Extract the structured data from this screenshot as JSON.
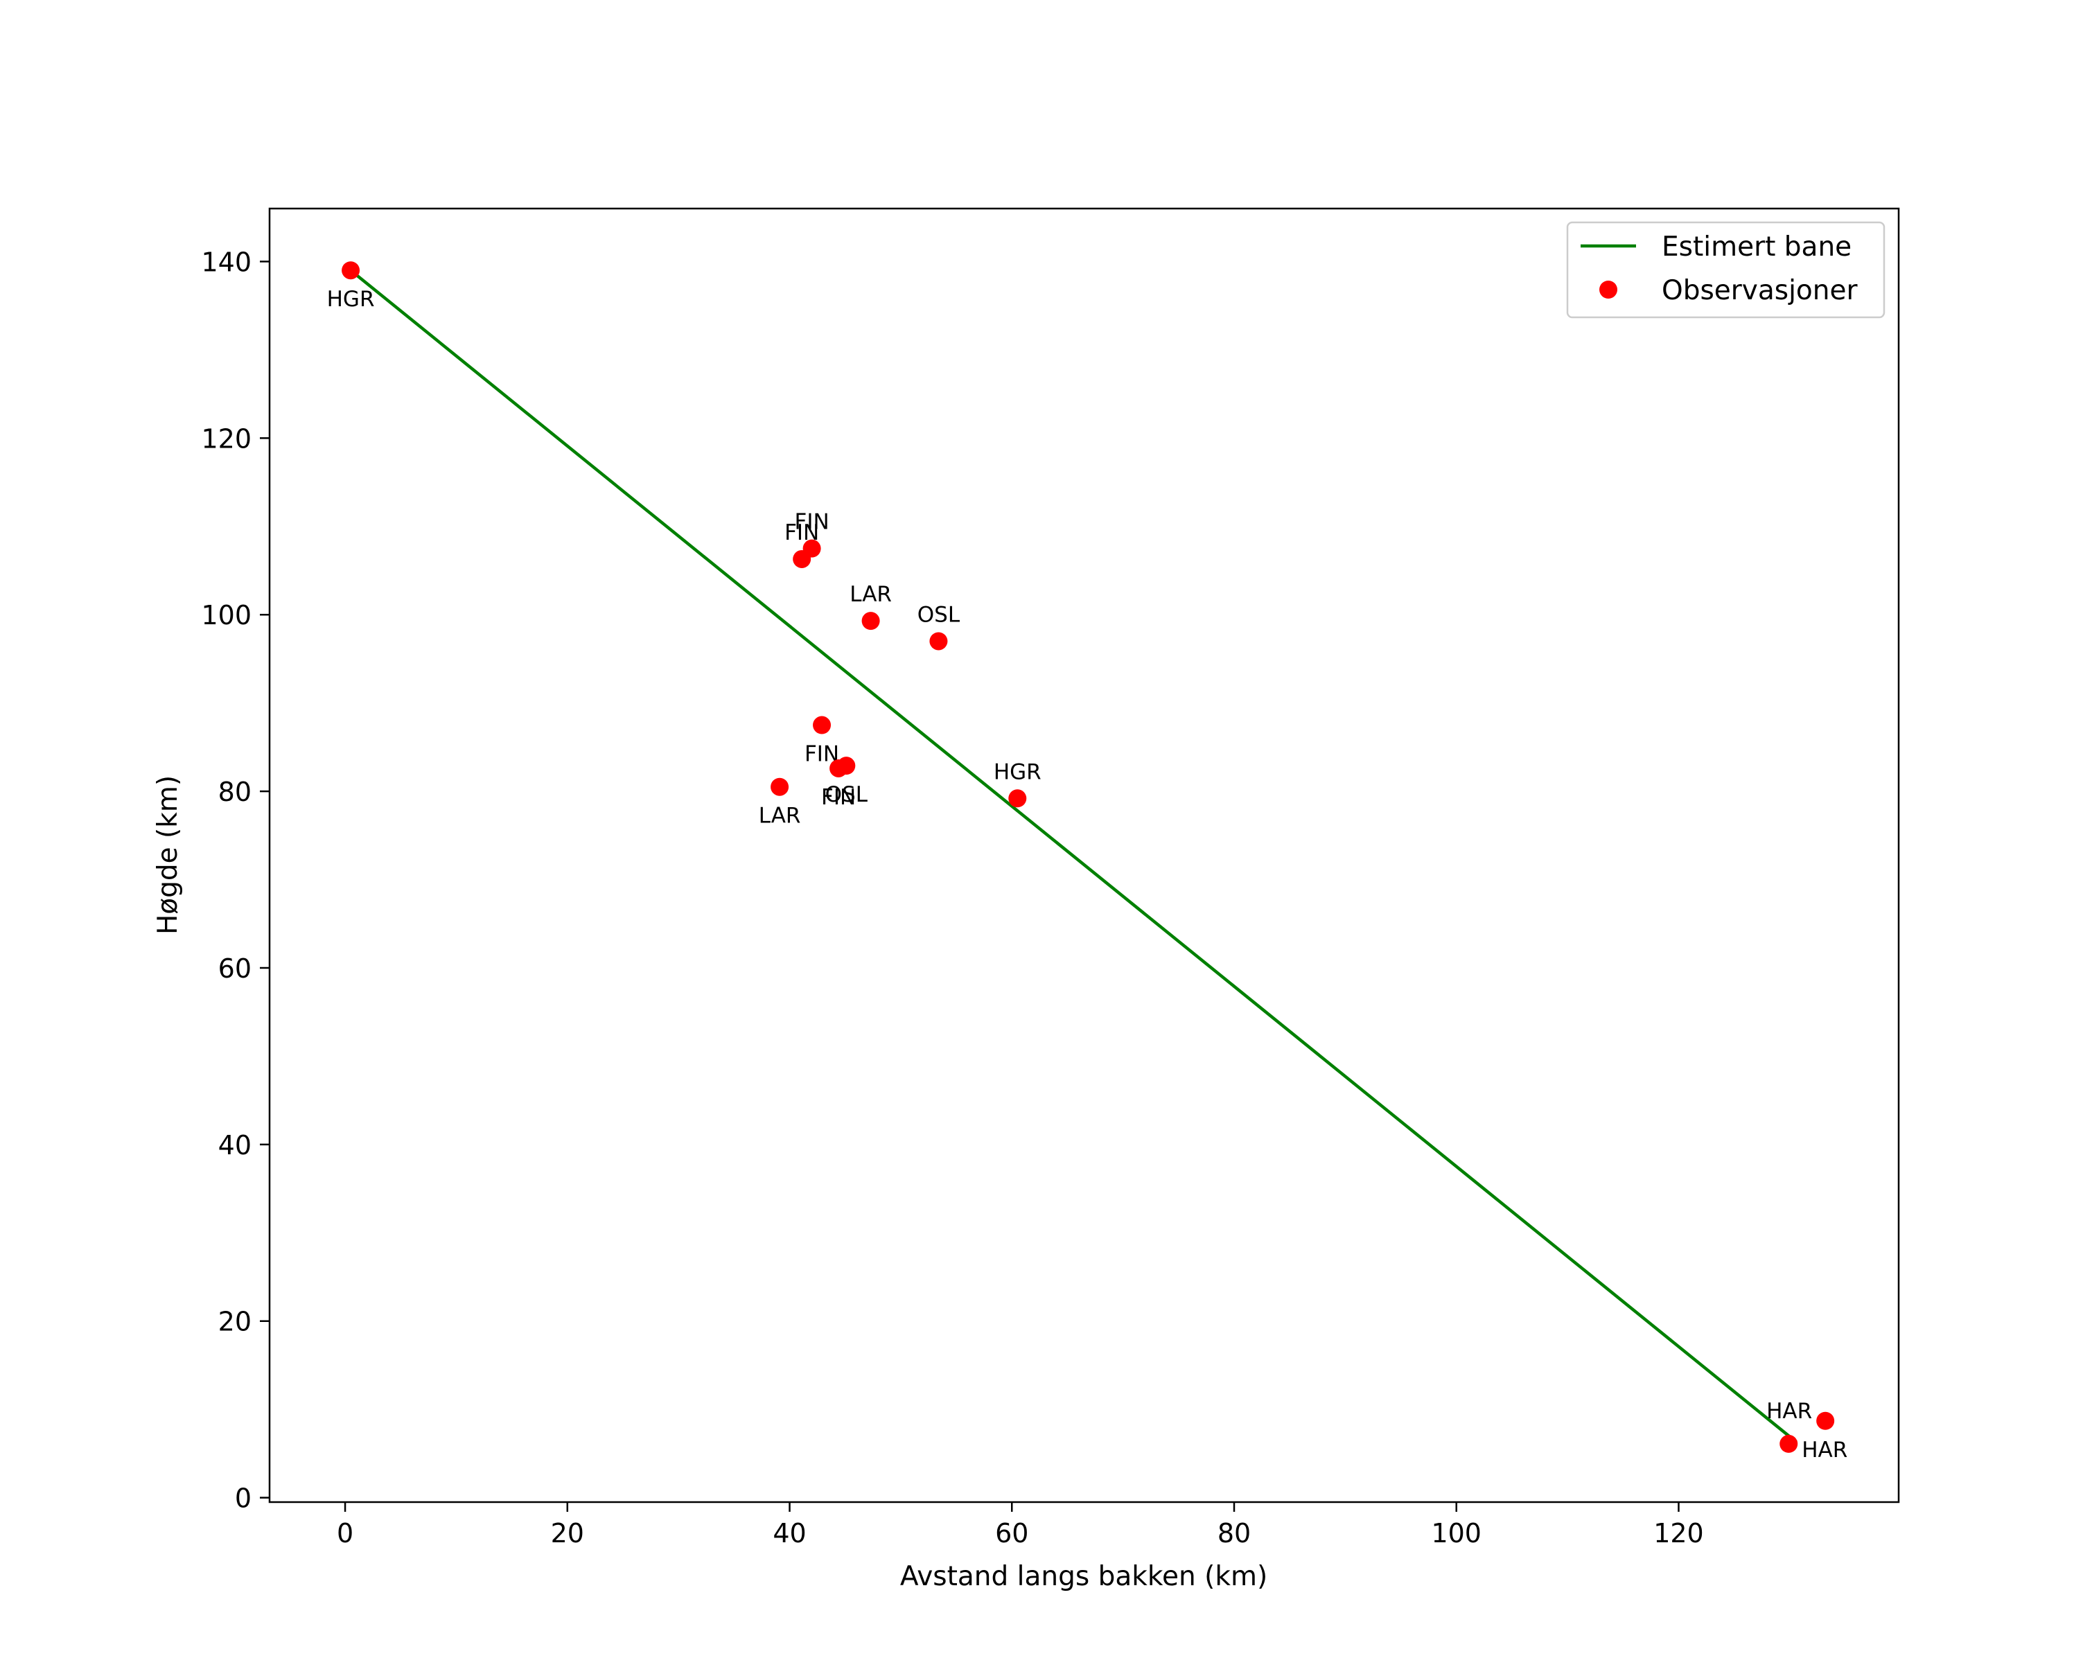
{
  "chart_data": {
    "type": "scatter",
    "title": "",
    "xlabel": "Avstand langs bakken (km)",
    "ylabel": "Høgde (km)",
    "xlim": [
      -6.8,
      139.8
    ],
    "ylim": [
      -0.5,
      146
    ],
    "grid": false,
    "legend_position": "top-right",
    "xticks": [
      0,
      20,
      40,
      60,
      80,
      100,
      120
    ],
    "yticks": [
      0,
      20,
      40,
      60,
      80,
      100,
      120,
      140
    ],
    "series": [
      {
        "name": "Estimert bane",
        "kind": "line",
        "color": "#008000",
        "x": [
          0.5,
          130.6
        ],
        "y": [
          139,
          6.3
        ]
      },
      {
        "name": "Observasjoner",
        "kind": "scatter",
        "color": "#ff0000",
        "points": [
          {
            "x": 0.5,
            "y": 139,
            "label": "HGR",
            "label_pos": "below"
          },
          {
            "x": 42.0,
            "y": 107.5,
            "label": "FIN",
            "label_pos": "above"
          },
          {
            "x": 41.1,
            "y": 106.3,
            "label": "FIN",
            "label_pos": "above"
          },
          {
            "x": 47.3,
            "y": 99.3,
            "label": "LAR",
            "label_pos": "above"
          },
          {
            "x": 53.4,
            "y": 97.0,
            "label": "OSL",
            "label_pos": "above"
          },
          {
            "x": 42.9,
            "y": 87.5,
            "label": "FIN",
            "label_pos": "below"
          },
          {
            "x": 44.4,
            "y": 82.6,
            "label": "FIN",
            "label_pos": "below"
          },
          {
            "x": 45.1,
            "y": 82.9,
            "label": "OSL",
            "label_pos": "below"
          },
          {
            "x": 39.1,
            "y": 80.5,
            "label": "LAR",
            "label_pos": "below"
          },
          {
            "x": 60.5,
            "y": 79.2,
            "label": "HGR",
            "label_pos": "above"
          },
          {
            "x": 133.2,
            "y": 8.7,
            "label": "HAR",
            "label_pos": "above-left"
          },
          {
            "x": 129.9,
            "y": 6.1,
            "label": "HAR",
            "label_pos": "below-right"
          }
        ]
      }
    ]
  }
}
